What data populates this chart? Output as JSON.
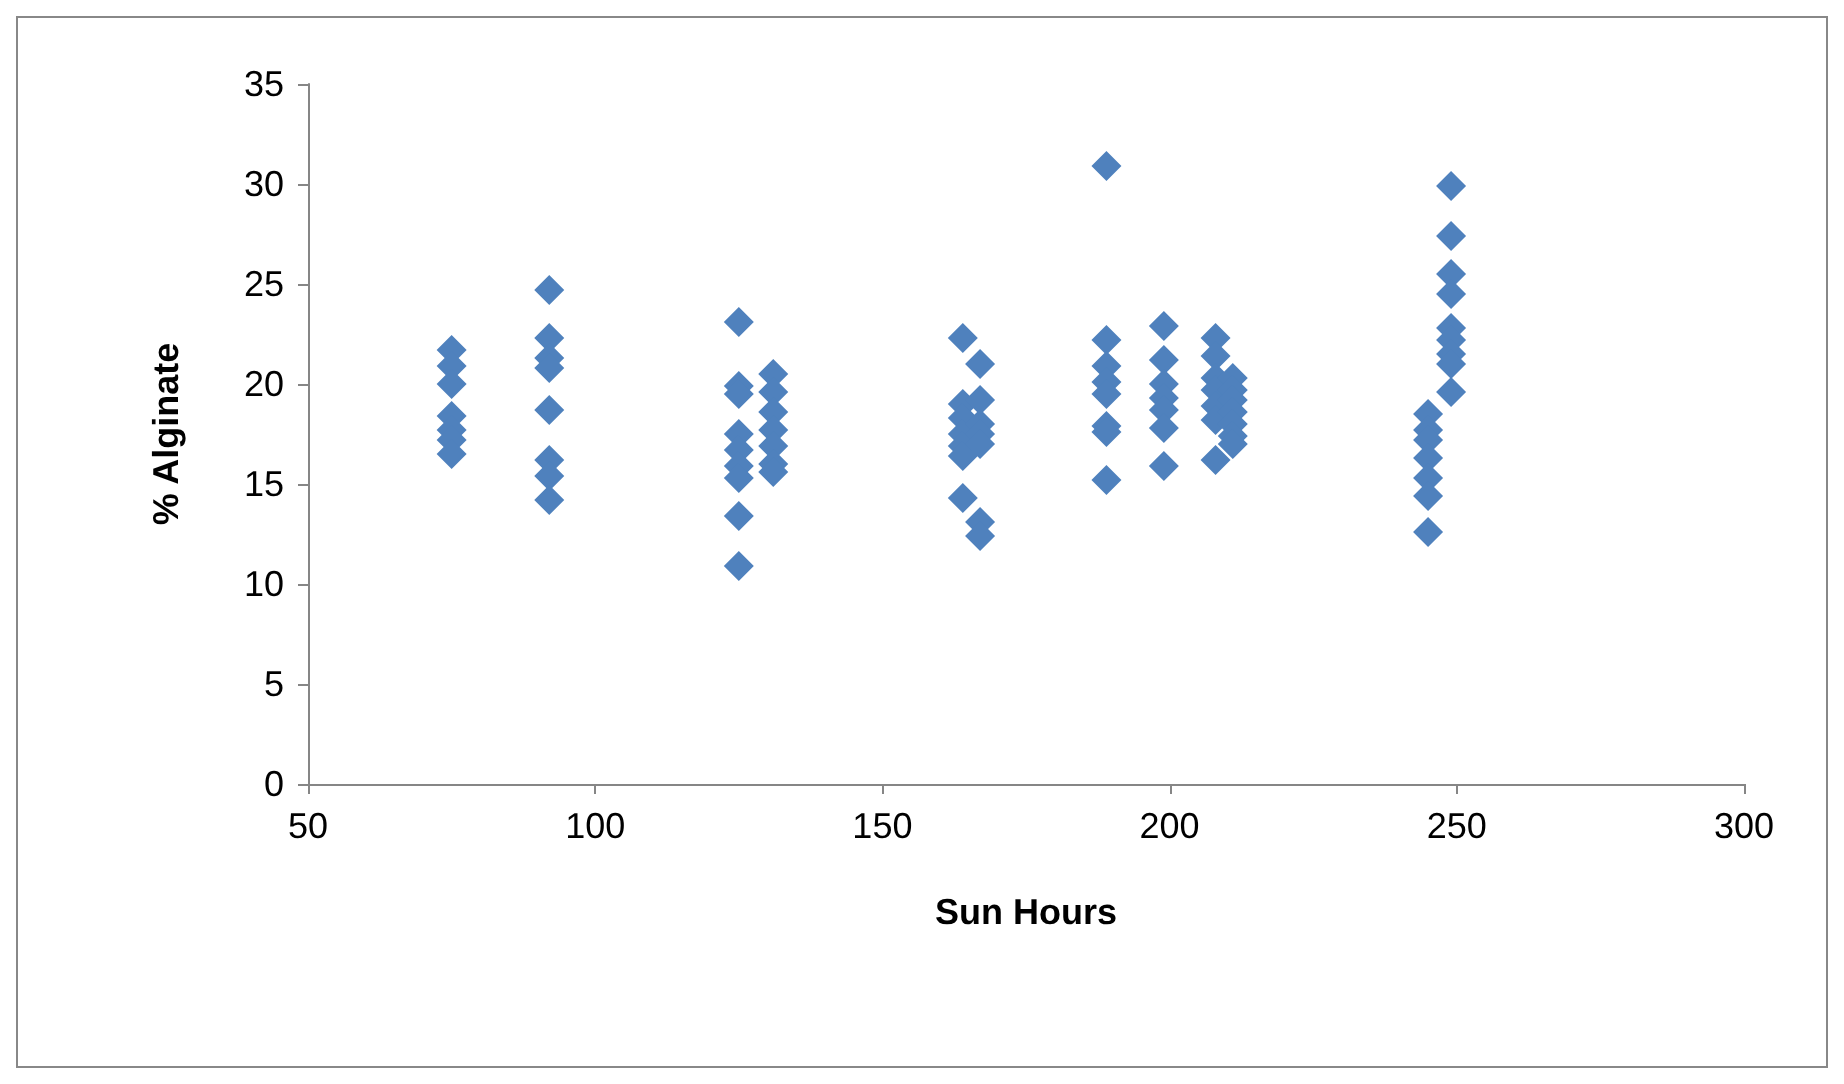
{
  "chart_data": {
    "type": "scatter",
    "xlabel": "Sun Hours",
    "ylabel": "% Alginate",
    "xlim": [
      50,
      300
    ],
    "xticks": [
      50,
      100,
      150,
      200,
      250,
      300
    ],
    "ylim": [
      0,
      35
    ],
    "yticks": [
      0,
      5,
      10,
      15,
      20,
      25,
      30,
      35
    ],
    "grid": false,
    "marker": "diamond",
    "series": [
      {
        "color": "#4f81bd",
        "x": [
          75,
          75,
          75,
          75,
          75,
          75,
          75,
          92,
          92,
          92,
          92,
          92,
          92,
          92,
          92,
          125,
          125,
          125,
          125,
          125,
          125,
          125,
          125,
          125,
          131,
          131,
          131,
          131,
          131,
          131,
          131,
          164,
          164,
          164,
          164,
          164,
          164,
          164,
          167,
          167,
          167,
          167,
          167,
          167,
          167,
          189,
          189,
          189,
          189,
          189,
          189,
          189,
          189,
          199,
          199,
          199,
          199,
          199,
          199,
          199,
          208,
          208,
          208,
          208,
          208,
          208,
          208,
          211,
          211,
          211,
          211,
          211,
          211,
          211,
          245,
          245,
          245,
          245,
          245,
          245,
          245,
          249,
          249,
          249,
          249,
          249,
          249,
          249,
          249,
          249
        ],
        "values": [
          21.7,
          20.9,
          20.0,
          18.4,
          17.7,
          17.2,
          16.5,
          24.7,
          22.3,
          21.3,
          20.8,
          18.7,
          16.2,
          15.4,
          14.2,
          23.1,
          19.9,
          19.5,
          17.5,
          16.7,
          15.9,
          15.3,
          13.4,
          10.9,
          20.5,
          19.6,
          18.6,
          17.7,
          16.9,
          16.0,
          15.6,
          22.3,
          19.0,
          18.3,
          17.5,
          16.9,
          16.4,
          14.3,
          21.0,
          19.2,
          18.0,
          17.5,
          17.0,
          13.1,
          12.4,
          30.9,
          22.2,
          20.9,
          20.1,
          19.5,
          17.9,
          17.6,
          15.2,
          22.9,
          21.2,
          20.0,
          19.3,
          18.7,
          17.8,
          15.9,
          22.3,
          21.4,
          20.3,
          19.7,
          18.9,
          18.2,
          16.2,
          20.3,
          19.7,
          19.2,
          18.6,
          18.0,
          17.4,
          17.0,
          18.5,
          17.7,
          17.2,
          16.3,
          15.3,
          14.4,
          12.6,
          29.9,
          27.4,
          25.5,
          24.5,
          22.8,
          22.2,
          21.5,
          21.0,
          19.6
        ]
      }
    ]
  }
}
